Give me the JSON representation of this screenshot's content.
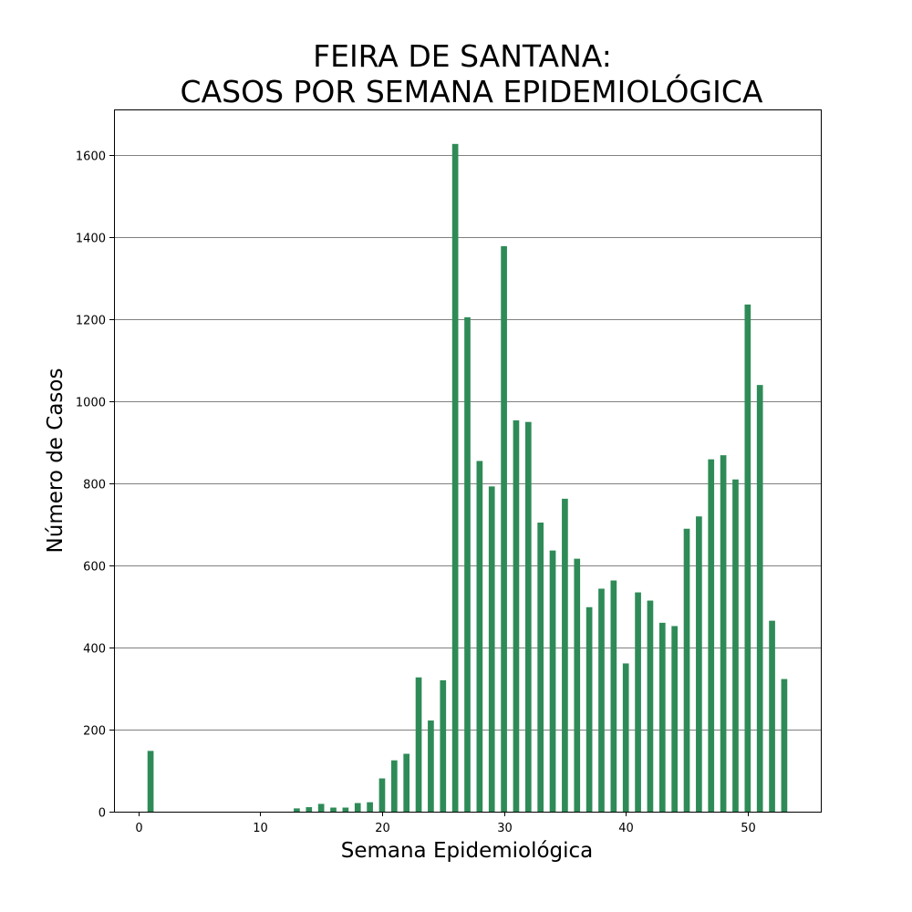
{
  "chart_data": {
    "type": "bar",
    "title_line1": "FEIRA DE SANTANA:",
    "title_line2": "CASOS POR SEMANA EPIDEMIOLÓGICA",
    "xlabel": "Semana Epidemiológica",
    "ylabel": "Número de Casos",
    "xlim": [
      -2,
      56
    ],
    "ylim": [
      0,
      1710
    ],
    "x_ticks": [
      0,
      10,
      20,
      30,
      40,
      50
    ],
    "y_ticks": [
      0,
      200,
      400,
      600,
      800,
      1000,
      1200,
      1400,
      1600
    ],
    "grid": "horizontal",
    "bar_color": "#2e8b57",
    "grid_color": "#808080",
    "x": [
      1,
      13,
      14,
      15,
      16,
      17,
      18,
      19,
      20,
      21,
      22,
      23,
      24,
      25,
      26,
      27,
      28,
      29,
      30,
      31,
      32,
      33,
      34,
      35,
      36,
      37,
      38,
      39,
      40,
      41,
      42,
      43,
      44,
      45,
      46,
      47,
      48,
      49,
      50,
      51,
      52,
      53
    ],
    "values": [
      148,
      8,
      11,
      19,
      10,
      10,
      21,
      23,
      81,
      125,
      141,
      327,
      222,
      320,
      1626,
      1204,
      854,
      792,
      1377,
      953,
      949,
      704,
      636,
      762,
      616,
      498,
      543,
      563,
      361,
      534,
      514,
      460,
      452,
      689,
      719,
      858,
      868,
      809,
      1235,
      1039,
      465,
      323
    ]
  }
}
